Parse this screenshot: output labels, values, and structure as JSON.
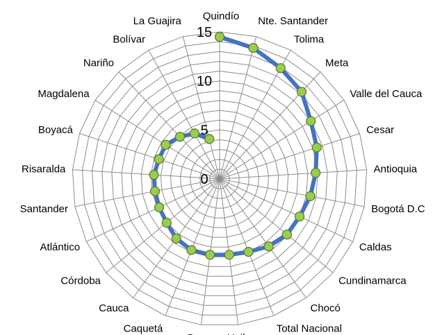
{
  "chart_data": {
    "type": "radar",
    "title": "",
    "categories": [
      "Quindío",
      "Nte. Santander",
      "Tolima",
      "Meta",
      "Valle del Cauca",
      "Cesar",
      "Antioquia",
      "Bogotá D.C",
      "Caldas",
      "Cundinamarca",
      "Chocó",
      "Total Nacional",
      "Huila",
      "Sucre",
      "Caquetá",
      "Cauca",
      "Córdoba",
      "Atlántico",
      "Santander",
      "Risaralda",
      "Boyacá",
      "Magdalena",
      "Nariño",
      "Bolívar",
      "La Guajira"
    ],
    "series": [
      {
        "values": [
          14.5,
          13.8,
          12.9,
          12.2,
          11.0,
          10.4,
          9.8,
          9.4,
          9.0,
          8.9,
          8.5,
          8.0,
          7.8,
          7.8,
          7.8,
          7.5,
          7.0,
          6.8,
          6.7,
          6.7,
          6.5,
          6.5,
          5.9,
          5.3,
          4.2
        ],
        "color": "#4472C4",
        "marker_color": "#92D050"
      }
    ],
    "r_ticks": [
      0,
      5,
      10,
      15
    ],
    "r_tick_labels": [
      "0",
      "5",
      "10",
      "15"
    ],
    "r_range": [
      0,
      15
    ],
    "grid": true,
    "legend": "none"
  }
}
